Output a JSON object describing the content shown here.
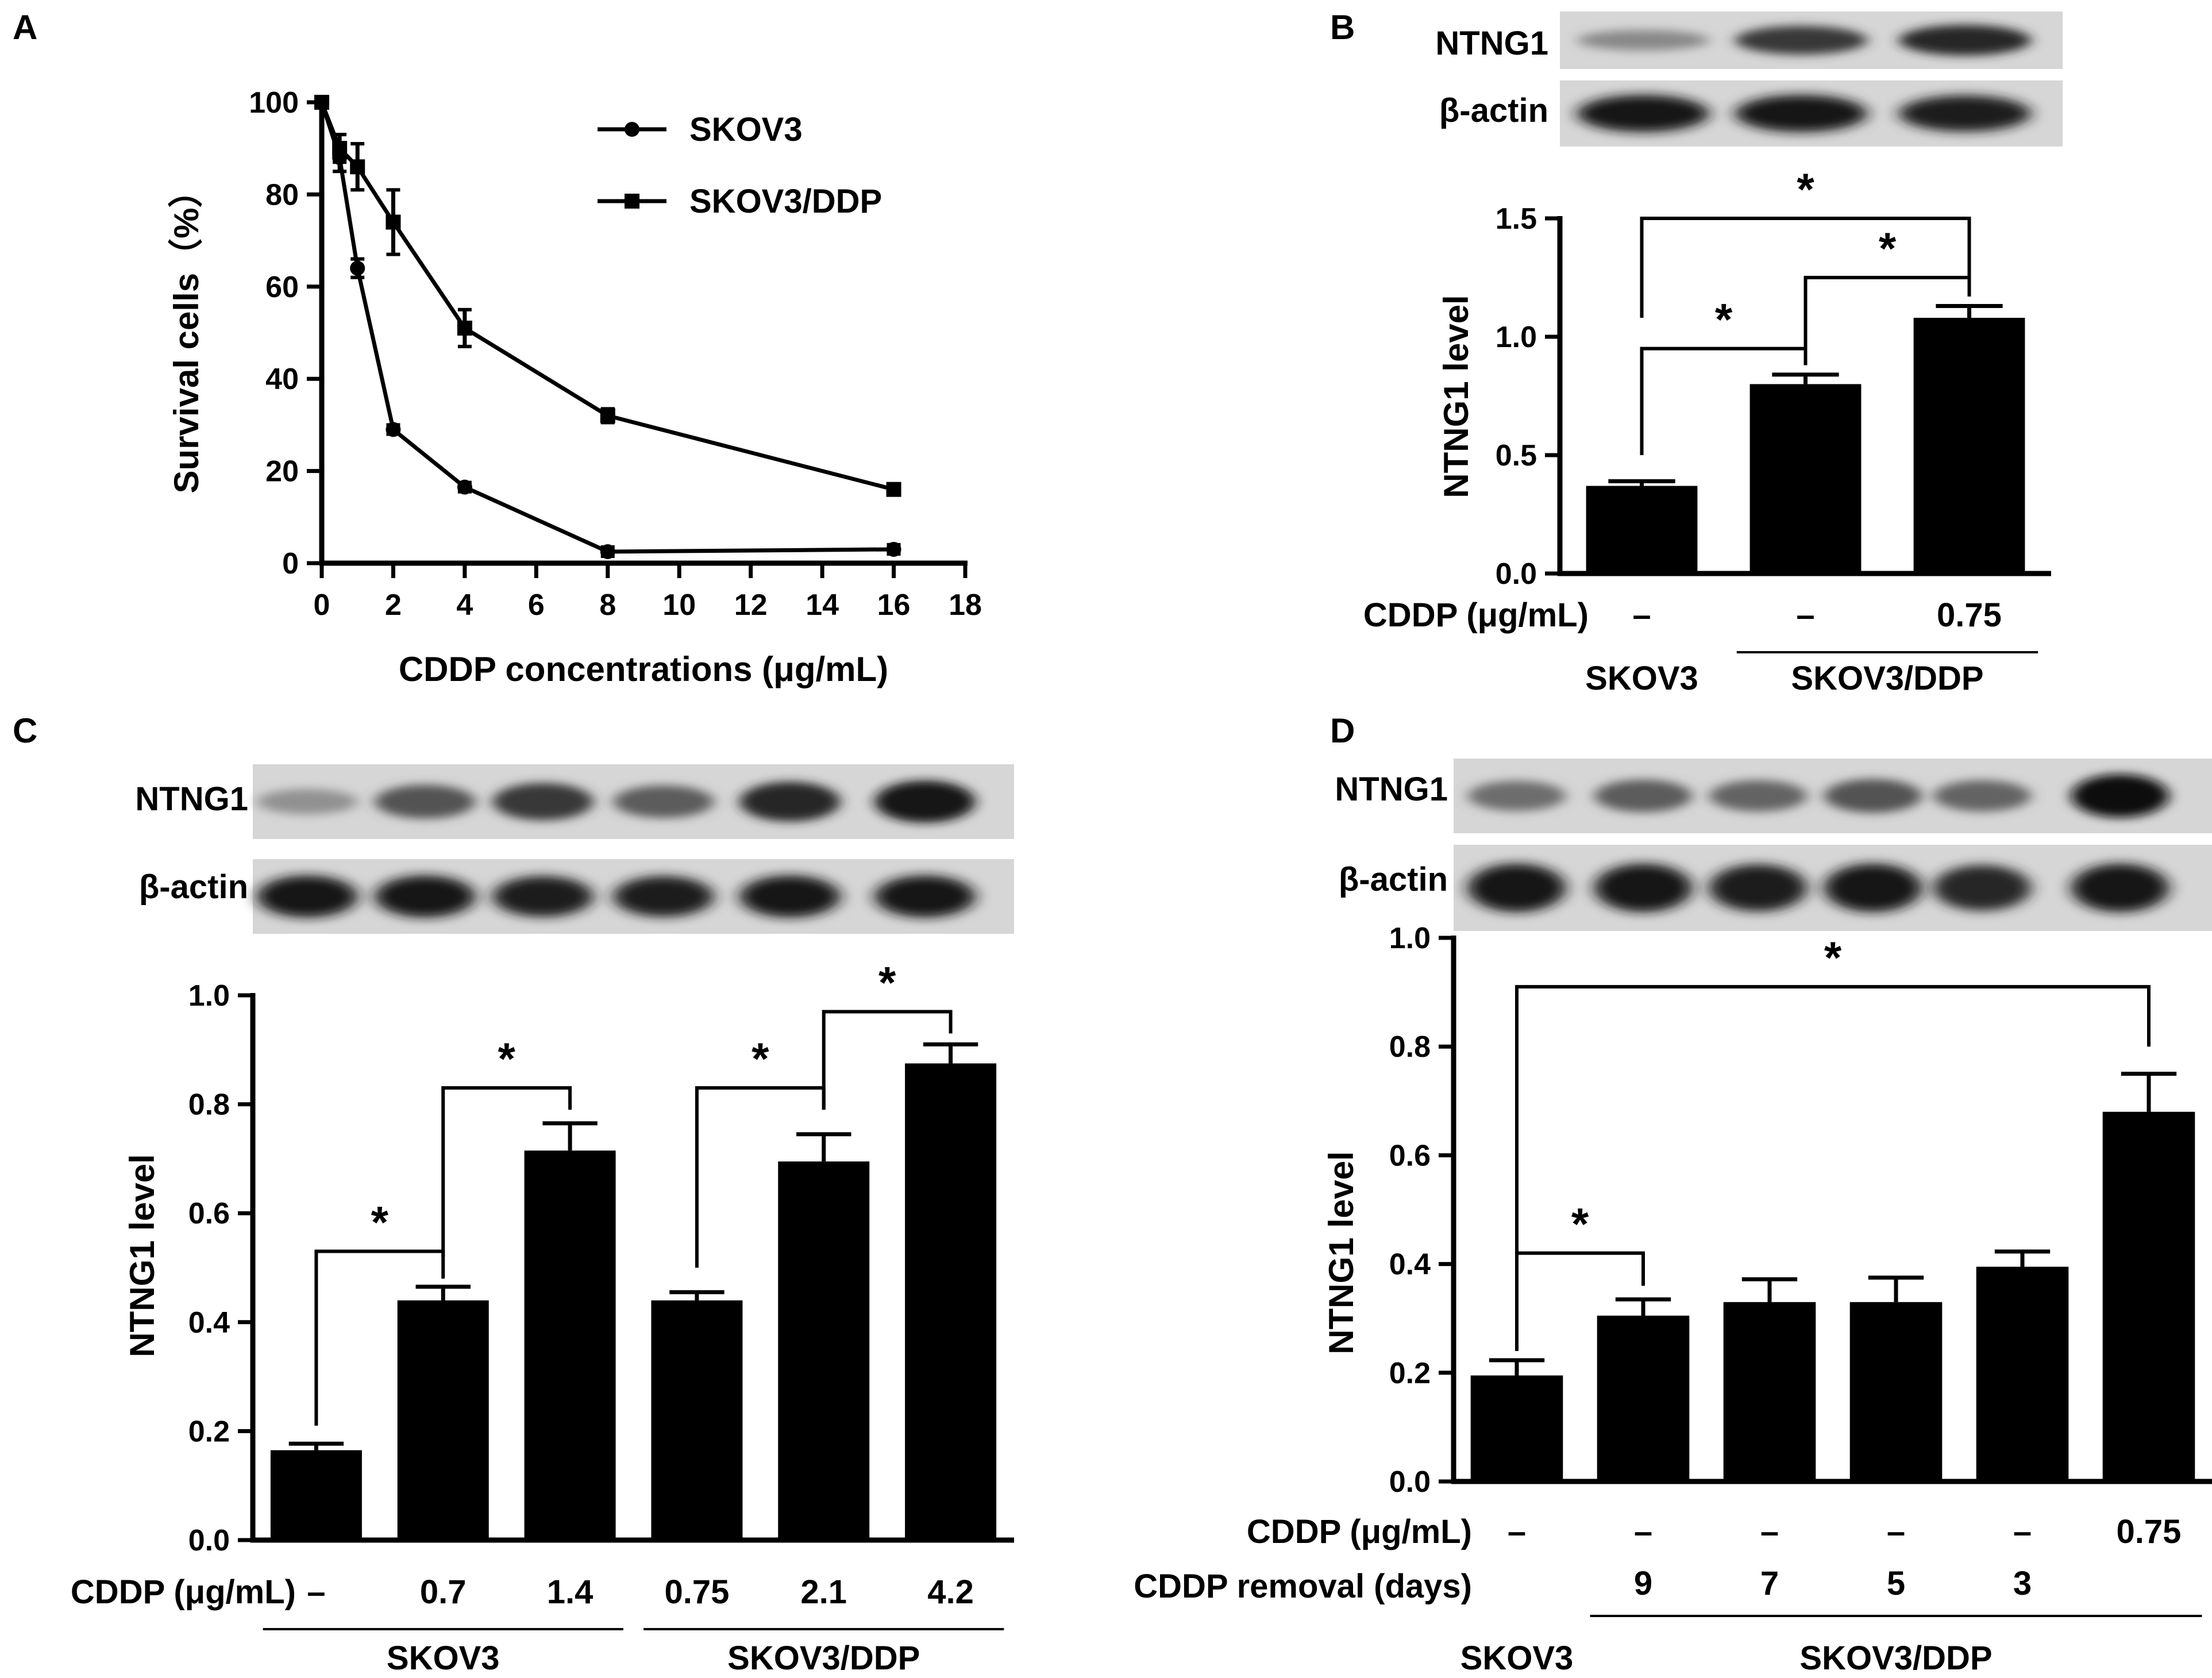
{
  "panels": {
    "A": {
      "label": "A"
    },
    "B": {
      "label": "B"
    },
    "C": {
      "label": "C"
    },
    "D": {
      "label": "D"
    }
  },
  "blots": {
    "B": {
      "rows": [
        "NTNG1",
        "β-actin"
      ]
    },
    "C": {
      "rows": [
        "NTNG1",
        "β-actin"
      ]
    },
    "D": {
      "rows": [
        "NTNG1",
        "β-actin"
      ]
    }
  },
  "chart_data": [
    {
      "panel": "A",
      "type": "line",
      "title": "",
      "xlabel": "CDDP concentrations (μg/mL)",
      "ylabel": "Survival cells（%）",
      "xlim": [
        0,
        18
      ],
      "ylim": [
        0,
        100
      ],
      "xticks": [
        "0",
        "2",
        "4",
        "6",
        "8",
        "10",
        "12",
        "14",
        "16",
        "18"
      ],
      "yticks": [
        "0",
        "20",
        "40",
        "60",
        "80",
        "100"
      ],
      "legend_position": "top-right",
      "series": [
        {
          "name": "SKOV3",
          "marker": "circle",
          "x": [
            0,
            0.5,
            1,
            2,
            4,
            8,
            16
          ],
          "y": [
            100,
            88,
            64,
            29,
            16.5,
            2.5,
            3
          ],
          "err": [
            0,
            3,
            2,
            1,
            1,
            1,
            1
          ]
        },
        {
          "name": "SKOV3/DDP",
          "marker": "square",
          "x": [
            0,
            0.5,
            1,
            2,
            4,
            8,
            16
          ],
          "y": [
            100,
            90,
            86,
            74,
            51,
            32,
            16
          ],
          "err": [
            0,
            3,
            5,
            7,
            4,
            1.5,
            1
          ]
        }
      ]
    },
    {
      "panel": "B",
      "type": "bar",
      "title": "",
      "xlabel": "",
      "ylabel": "NTNG1 level",
      "ylim": [
        0,
        1.5
      ],
      "yticks": [
        "0.0",
        "0.5",
        "1.0",
        "1.5"
      ],
      "row_label": "CDDP (μg/mL)",
      "categories": [
        "–",
        "–",
        "0.75"
      ],
      "values": [
        0.37,
        0.8,
        1.08
      ],
      "errors": [
        0.02,
        0.04,
        0.05
      ],
      "groups": [
        {
          "name": "SKOV3",
          "from": 0,
          "to": 0
        },
        {
          "name": "SKOV3/DDP",
          "from": 1,
          "to": 2
        }
      ],
      "significance": [
        {
          "from": 0,
          "to": 1,
          "label": "*"
        },
        {
          "from": 1,
          "to": 2,
          "label": "*"
        },
        {
          "from": 0,
          "to": 2,
          "label": "*"
        }
      ]
    },
    {
      "panel": "C",
      "type": "bar",
      "title": "",
      "xlabel": "",
      "ylabel": "NTNG1 level",
      "ylim": [
        0,
        1.0
      ],
      "yticks": [
        "0.0",
        "0.2",
        "0.4",
        "0.6",
        "0.8",
        "1.0"
      ],
      "row_label": "CDDP (μg/mL)",
      "categories": [
        "–",
        "0.7",
        "1.4",
        "0.75",
        "2.1",
        "4.2"
      ],
      "values": [
        0.165,
        0.44,
        0.715,
        0.44,
        0.695,
        0.875
      ],
      "errors": [
        0.012,
        0.025,
        0.05,
        0.015,
        0.05,
        0.035
      ],
      "groups": [
        {
          "name": "SKOV3",
          "from": 0,
          "to": 2
        },
        {
          "name": "SKOV3/DDP",
          "from": 3,
          "to": 5
        }
      ],
      "significance": [
        {
          "from": 0,
          "to": 1,
          "label": "*"
        },
        {
          "from": 1,
          "to": 2,
          "label": "*"
        },
        {
          "from": 3,
          "to": 4,
          "label": "*"
        },
        {
          "from": 4,
          "to": 5,
          "label": "*"
        }
      ]
    },
    {
      "panel": "D",
      "type": "bar",
      "title": "",
      "xlabel": "",
      "ylabel": "NTNG1 level",
      "ylim": [
        0,
        1.0
      ],
      "yticks": [
        "0.0",
        "0.2",
        "0.4",
        "0.6",
        "0.8",
        "1.0"
      ],
      "row_label": "CDDP (μg/mL)",
      "row2_label": "CDDP removal (days)",
      "categories": [
        "–",
        "–",
        "–",
        "–",
        "–",
        "0.75"
      ],
      "removal_days": [
        "",
        "9",
        "7",
        "5",
        "3",
        ""
      ],
      "values": [
        0.195,
        0.305,
        0.33,
        0.33,
        0.395,
        0.68
      ],
      "errors": [
        0.028,
        0.03,
        0.042,
        0.045,
        0.028,
        0.07
      ],
      "groups": [
        {
          "name": "SKOV3",
          "from": 0,
          "to": 0,
          "line": false
        },
        {
          "name": "SKOV3/DDP",
          "from": 1,
          "to": 5,
          "line": true
        }
      ],
      "significance": [
        {
          "from": 0,
          "to": 1,
          "label": "*"
        },
        {
          "from": 0,
          "to": 5,
          "label": "*"
        }
      ]
    }
  ]
}
